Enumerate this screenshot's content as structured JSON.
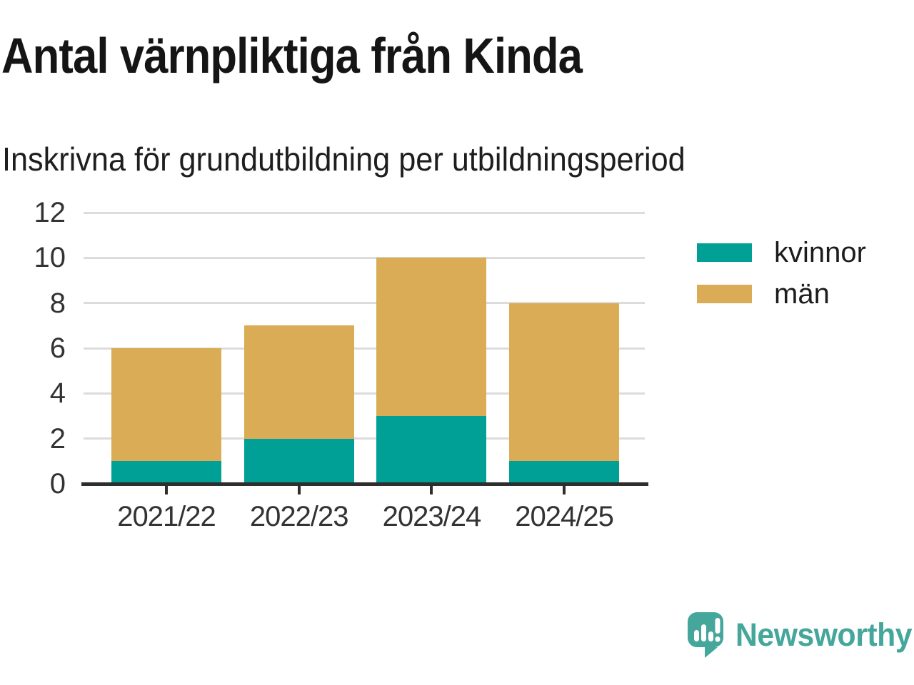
{
  "title": "Antal värnpliktiga från Kinda",
  "subtitle": "Inskrivna för grundutbildning per utbildningsperiod",
  "brand": {
    "name": "Newsworthy",
    "color": "#45a69b",
    "icon": "speech-bubble-bar-chart-icon"
  },
  "colors": {
    "background": "#ffffff",
    "title_text": "#151515",
    "axis_label_text": "#333333",
    "gridline": "#dcdcdc",
    "axis_line": "#2e2e2e",
    "kvinnor": "#00a096",
    "man": "#d9ac55"
  },
  "chart_data": {
    "type": "bar",
    "stacked": true,
    "title": "Antal värnpliktiga från Kinda",
    "subtitle": "Inskrivna för grundutbildning per utbildningsperiod",
    "categories": [
      "2021/22",
      "2022/23",
      "2023/24",
      "2024/25"
    ],
    "series": [
      {
        "name": "kvinnor",
        "color": "#00a096",
        "values": [
          1,
          2,
          3,
          1
        ]
      },
      {
        "name": "män",
        "color": "#d9ac55",
        "values": [
          5,
          5,
          7,
          7
        ]
      }
    ],
    "stack_totals": [
      6,
      7,
      10,
      8
    ],
    "xlabel": "",
    "ylabel": "",
    "ylim": [
      0,
      12
    ],
    "yticks": [
      0,
      2,
      4,
      6,
      8,
      10,
      12
    ],
    "grid": "horizontal",
    "legend_position": "right"
  }
}
